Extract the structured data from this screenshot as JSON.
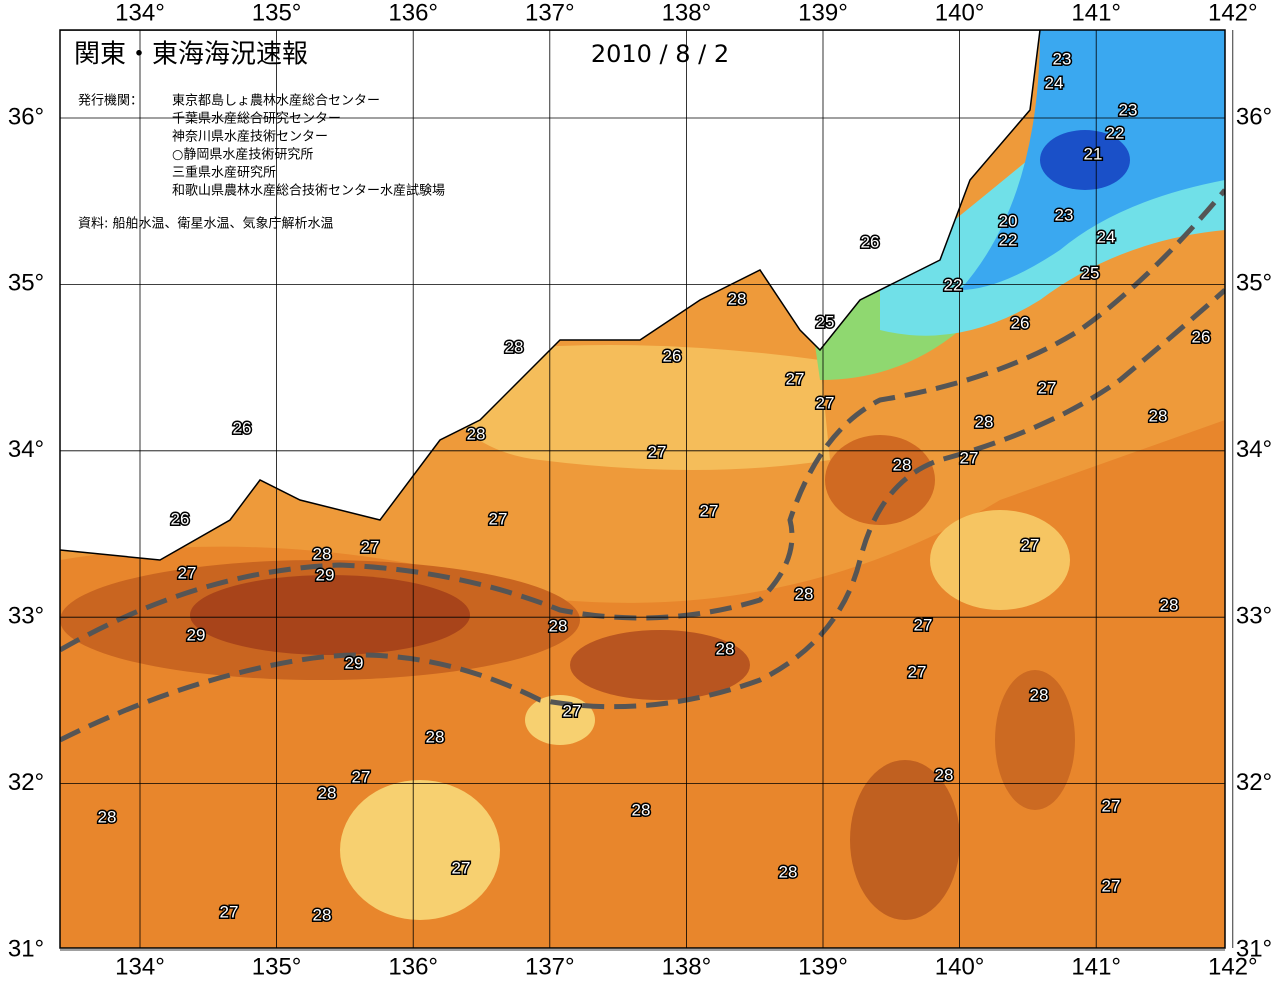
{
  "header": {
    "title": "関東・東海海況速報",
    "date": "2010 / 8 / 2",
    "publisher_label": "発行機関：",
    "publishers": [
      "東京都島しょ農林水産総合センター",
      "千葉県水産総合研究センター",
      "神奈川県水産技術センター",
      "○静岡県水産技術研究所",
      "三重県水産研究所",
      "和歌山県農林水産総合技術センター水産試験場"
    ],
    "source": "資料: 船舶水温、衛星水温、気象庁解析水温"
  },
  "map": {
    "longitude_ticks": [
      {
        "value": 134,
        "label": "134°"
      },
      {
        "value": 135,
        "label": "135°"
      },
      {
        "value": 136,
        "label": "136°"
      },
      {
        "value": 137,
        "label": "137°"
      },
      {
        "value": 138,
        "label": "138°"
      },
      {
        "value": 139,
        "label": "139°"
      },
      {
        "value": 140,
        "label": "140°"
      },
      {
        "value": 141,
        "label": "141°"
      },
      {
        "value": 142,
        "label": "142°"
      }
    ],
    "latitude_ticks": [
      {
        "value": 36,
        "label": "36°"
      },
      {
        "value": 35,
        "label": "35°"
      },
      {
        "value": 34,
        "label": "34°"
      },
      {
        "value": 33,
        "label": "33°"
      },
      {
        "value": 32,
        "label": "32°"
      },
      {
        "value": 31,
        "label": "31°"
      }
    ],
    "contour_labels": [
      23,
      24,
      23,
      22,
      21,
      20,
      22,
      23,
      24,
      26,
      22,
      25,
      28,
      25,
      26,
      26,
      28,
      26,
      27,
      27,
      27,
      28,
      28,
      26,
      28,
      27,
      27,
      28,
      27,
      27,
      26,
      27,
      28,
      27,
      27,
      29,
      28,
      28,
      27,
      28,
      29,
      28,
      29,
      27,
      28,
      27,
      28,
      28,
      27,
      28,
      27,
      28,
      28,
      27,
      28,
      27,
      27,
      28
    ]
  }
}
